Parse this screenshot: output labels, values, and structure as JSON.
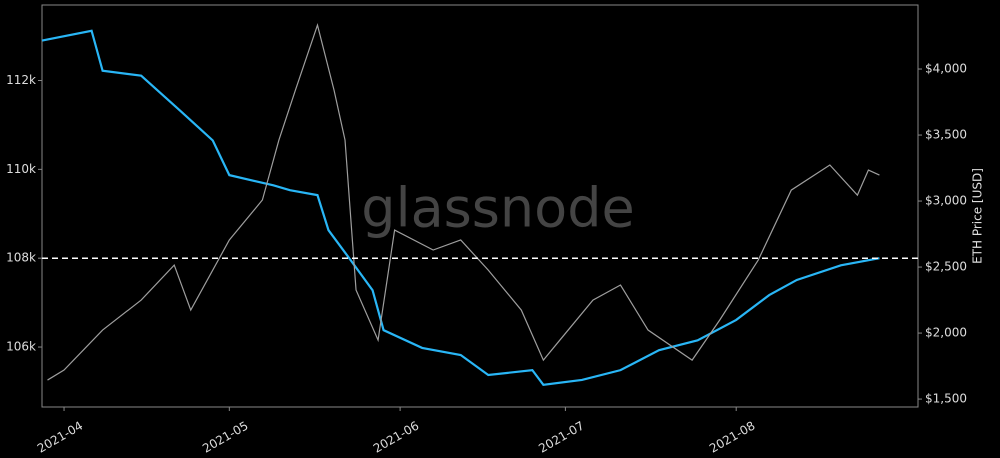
{
  "chart_data": {
    "type": "line",
    "watermark": "glassnode",
    "y2label": "ETH Price [USD]",
    "xlim": [
      -4,
      155
    ],
    "xticks": [
      {
        "value": 0,
        "label": "2021-04"
      },
      {
        "value": 30,
        "label": "2021-05"
      },
      {
        "value": 61,
        "label": "2021-06"
      },
      {
        "value": 91,
        "label": "2021-07"
      },
      {
        "value": 122,
        "label": "2021-08"
      }
    ],
    "ylim": [
      104650,
      113700
    ],
    "yticks": [
      {
        "value": 106000,
        "label": "106k"
      },
      {
        "value": 108000,
        "label": "108k"
      },
      {
        "value": 110000,
        "label": "110k"
      },
      {
        "value": 112000,
        "label": "112k"
      }
    ],
    "y2lim": [
      1440,
      4485
    ],
    "y2ticks": [
      {
        "value": 1500,
        "label": "$1,500"
      },
      {
        "value": 2000,
        "label": "$2,000"
      },
      {
        "value": 2500,
        "label": "$2,500"
      },
      {
        "value": 3000,
        "label": "$3,000"
      },
      {
        "value": 3500,
        "label": "$3,500"
      },
      {
        "value": 4000,
        "label": "$4,000"
      }
    ],
    "hline": 108000,
    "series": [
      {
        "color": "#29b6f6",
        "x": [
          -4,
          5,
          7,
          14,
          21,
          27,
          30,
          38,
          41,
          46,
          48,
          52,
          56,
          58,
          65,
          72,
          77,
          85,
          87,
          94,
          101,
          108,
          115,
          122,
          128,
          133,
          141,
          148
        ],
        "values": [
          112900,
          113120,
          112220,
          112110,
          111330,
          110650,
          109870,
          109640,
          109530,
          109420,
          108630,
          107960,
          107280,
          106380,
          105980,
          105820,
          105370,
          105480,
          105150,
          105260,
          105480,
          105930,
          106150,
          106610,
          107170,
          107510,
          107840,
          108000
        ]
      },
      {
        "color": "#9e9e9e",
        "axis": "y2",
        "x": [
          -3,
          0,
          7,
          14,
          20,
          23,
          30,
          36,
          39,
          42,
          46,
          49,
          51,
          53,
          57,
          60,
          67,
          72,
          77,
          83,
          87,
          90,
          96,
          101,
          106,
          114,
          119,
          126,
          132,
          139,
          144,
          146,
          148
        ],
        "values": [
          1644,
          1720,
          2023,
          2250,
          2515,
          2174,
          2705,
          3008,
          3462,
          3841,
          4333,
          3841,
          3462,
          2326,
          1947,
          2780,
          2629,
          2705,
          2477,
          2174,
          1795,
          1947,
          2250,
          2364,
          2023,
          1795,
          2098,
          2553,
          3083,
          3273,
          3045,
          3235,
          3197
        ]
      }
    ]
  }
}
